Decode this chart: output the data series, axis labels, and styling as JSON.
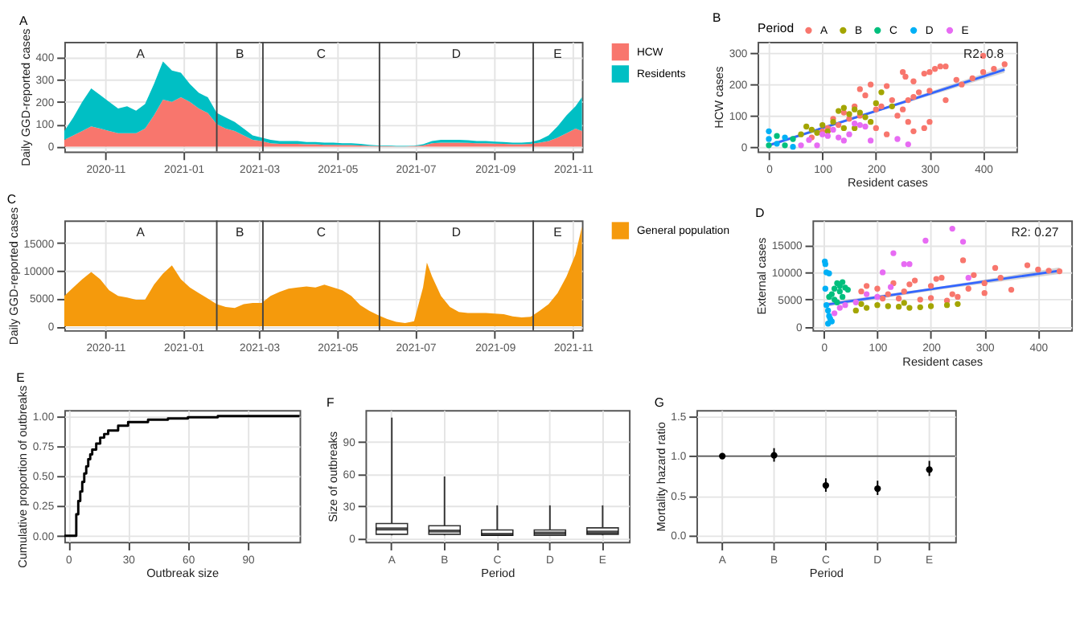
{
  "chart_data": [
    {
      "type": "area",
      "title": "A",
      "ylabel": "Daily GGD-reported cases",
      "stacked": true,
      "grid": true,
      "legend": "right",
      "x": [
        "2020-09-30",
        "2020-10-07",
        "2020-10-14",
        "2020-10-21",
        "2020-10-28",
        "2020-11-04",
        "2020-11-11",
        "2020-11-18",
        "2020-11-25",
        "2020-12-02",
        "2020-12-09",
        "2020-12-16",
        "2020-12-23",
        "2020-12-30",
        "2021-01-06",
        "2021-01-13",
        "2021-01-20",
        "2021-01-27",
        "2021-02-03",
        "2021-02-10",
        "2021-02-17",
        "2021-02-24",
        "2021-03-03",
        "2021-03-10",
        "2021-03-17",
        "2021-03-24",
        "2021-03-31",
        "2021-04-07",
        "2021-04-14",
        "2021-04-21",
        "2021-04-28",
        "2021-05-05",
        "2021-05-12",
        "2021-05-19",
        "2021-05-26",
        "2021-06-02",
        "2021-06-09",
        "2021-06-16",
        "2021-06-23",
        "2021-06-30",
        "2021-07-07",
        "2021-07-14",
        "2021-07-21",
        "2021-07-28",
        "2021-08-04",
        "2021-08-11",
        "2021-08-18",
        "2021-08-25",
        "2021-09-01",
        "2021-09-08",
        "2021-09-15",
        "2021-09-22",
        "2021-09-29",
        "2021-10-06",
        "2021-10-13",
        "2021-10-20",
        "2021-10-27",
        "2021-11-03",
        "2021-11-08"
      ],
      "series": [
        {
          "name": "HCW",
          "color": "#f8766d",
          "values": [
            30,
            50,
            70,
            90,
            80,
            70,
            60,
            60,
            60,
            80,
            140,
            210,
            200,
            220,
            200,
            170,
            150,
            100,
            80,
            70,
            50,
            30,
            25,
            15,
            12,
            12,
            12,
            10,
            10,
            8,
            8,
            7,
            7,
            5,
            3,
            2,
            2,
            1,
            1,
            2,
            5,
            15,
            18,
            18,
            18,
            17,
            15,
            15,
            13,
            12,
            10,
            10,
            12,
            18,
            25,
            40,
            60,
            80,
            70
          ]
        },
        {
          "name": "Residents",
          "color": "#00bfc4",
          "values": [
            40,
            80,
            130,
            170,
            150,
            130,
            110,
            120,
            100,
            110,
            140,
            170,
            140,
            110,
            80,
            70,
            70,
            50,
            50,
            40,
            30,
            20,
            15,
            15,
            13,
            13,
            13,
            10,
            10,
            10,
            10,
            8,
            8,
            7,
            5,
            3,
            3,
            2,
            2,
            2,
            5,
            10,
            12,
            12,
            12,
            11,
            10,
            10,
            9,
            8,
            8,
            8,
            8,
            12,
            25,
            50,
            80,
            100,
            150
          ]
        }
      ],
      "xlim": [
        "2020-09-30",
        "2021-11-08"
      ],
      "xticks": [
        "2020-11",
        "2021-01",
        "2021-03",
        "2021-05",
        "2021-07",
        "2021-09",
        "2021-11"
      ],
      "ylim": [
        -22,
        468
      ],
      "yticks": [
        0,
        100,
        200,
        300,
        400
      ],
      "ref_lines": [
        {
          "axis": "x",
          "value": "2021-01-27"
        },
        {
          "axis": "x",
          "value": "2021-03-04"
        },
        {
          "axis": "x",
          "value": "2021-06-03"
        },
        {
          "axis": "x",
          "value": "2021-10-01"
        }
      ],
      "annotations": [
        "A",
        "B",
        "C",
        "D",
        "E"
      ]
    },
    {
      "type": "scatter",
      "title": "B",
      "xlabel": "Resident cases",
      "ylabel": "HCW cases",
      "legend_title": "Period",
      "legend": "top",
      "grid": true,
      "xlim": [
        -21,
        462
      ],
      "xticks": [
        0,
        100,
        200,
        300,
        400
      ],
      "ylim": [
        -15,
        337
      ],
      "yticks": [
        0,
        100,
        200,
        300
      ],
      "annotations": [
        "R2: 0.8"
      ],
      "series": [
        {
          "name": "A",
          "color": "#f8766d",
          "marker": "circle",
          "x": [
            250,
            255,
            270,
            290,
            300,
            310,
            320,
            330,
            400,
            420,
            440,
            380,
            350,
            300,
            280,
            270,
            260,
            230,
            220,
            190,
            180,
            170,
            160,
            200,
            240,
            260,
            300,
            290,
            270,
            220,
            200,
            150,
            130,
            110,
            100,
            80,
            140,
            170,
            210,
            250,
            330,
            360,
            400,
            120
          ],
          "values": [
            240,
            225,
            210,
            235,
            240,
            250,
            258,
            258,
            292,
            250,
            265,
            220,
            215,
            180,
            175,
            160,
            150,
            150,
            195,
            200,
            165,
            185,
            130,
            120,
            100,
            80,
            80,
            60,
            50,
            40,
            60,
            90,
            70,
            60,
            50,
            30,
            110,
            100,
            130,
            120,
            150,
            200,
            240,
            90
          ]
        },
        {
          "name": "B",
          "color": "#a3a500",
          "marker": "circle",
          "x": [
            100,
            120,
            130,
            140,
            150,
            160,
            170,
            180,
            210,
            200,
            230,
            70,
            80,
            90,
            60,
            110,
            140,
            160,
            190
          ],
          "values": [
            70,
            80,
            115,
            125,
            105,
            120,
            110,
            95,
            175,
            140,
            130,
            65,
            55,
            45,
            40,
            50,
            60,
            60,
            80
          ]
        },
        {
          "name": "C",
          "color": "#00bf7d",
          "marker": "circle",
          "x": [
            0,
            15,
            30,
            45
          ],
          "values": [
            5,
            35,
            5,
            25
          ]
        },
        {
          "name": "D",
          "color": "#00b0f6",
          "marker": "circle",
          "x": [
            0,
            15,
            30,
            45,
            0
          ],
          "values": [
            25,
            10,
            30,
            0,
            50
          ]
        },
        {
          "name": "E",
          "color": "#e76bf3",
          "marker": "circle",
          "x": [
            60,
            75,
            90,
            100,
            120,
            130,
            150,
            170,
            180,
            190,
            160,
            140,
            240,
            260,
            110
          ],
          "values": [
            5,
            22,
            5,
            40,
            55,
            30,
            40,
            70,
            65,
            20,
            75,
            20,
            25,
            8,
            35
          ]
        },
        {
          "type": "line",
          "color": "#3366ff",
          "x": [
            0,
            220,
            440
          ],
          "values": [
            5,
            126,
            248
          ],
          "lower": [
            0,
            122,
            238
          ],
          "upper": [
            10,
            130,
            258
          ]
        }
      ]
    },
    {
      "type": "area",
      "title": "C",
      "ylabel": "Daily GGD-reported cases",
      "grid": true,
      "legend": "right",
      "x": [
        "2020-09-30",
        "2020-10-07",
        "2020-10-14",
        "2020-10-21",
        "2020-10-28",
        "2020-11-04",
        "2020-11-11",
        "2020-11-18",
        "2020-11-25",
        "2020-12-02",
        "2020-12-09",
        "2020-12-16",
        "2020-12-23",
        "2020-12-30",
        "2021-01-06",
        "2021-01-13",
        "2021-01-20",
        "2021-01-27",
        "2021-02-03",
        "2021-02-10",
        "2021-02-17",
        "2021-02-24",
        "2021-03-03",
        "2021-03-10",
        "2021-03-17",
        "2021-03-24",
        "2021-03-31",
        "2021-04-07",
        "2021-04-14",
        "2021-04-21",
        "2021-04-28",
        "2021-05-05",
        "2021-05-12",
        "2021-05-19",
        "2021-05-26",
        "2021-06-02",
        "2021-06-09",
        "2021-06-16",
        "2021-06-23",
        "2021-06-30",
        "2021-07-07",
        "2021-07-10",
        "2021-07-14",
        "2021-07-21",
        "2021-07-28",
        "2021-08-04",
        "2021-08-11",
        "2021-08-18",
        "2021-08-25",
        "2021-09-01",
        "2021-09-08",
        "2021-09-15",
        "2021-09-22",
        "2021-09-29",
        "2021-10-06",
        "2021-10-13",
        "2021-10-20",
        "2021-10-27",
        "2021-11-03",
        "2021-11-08"
      ],
      "series": [
        {
          "name": "General population",
          "color": "#f59a0c",
          "values": [
            5500,
            7000,
            8500,
            9800,
            8500,
            6500,
            5500,
            5200,
            4800,
            4800,
            7500,
            9500,
            11000,
            8500,
            7000,
            6000,
            5000,
            4000,
            3500,
            3300,
            4000,
            4200,
            4200,
            5500,
            6200,
            6800,
            7000,
            7200,
            7000,
            7500,
            7000,
            6500,
            5500,
            3800,
            2800,
            2000,
            1300,
            800,
            600,
            900,
            7000,
            11500,
            9000,
            5500,
            3500,
            2600,
            2400,
            2400,
            2400,
            2300,
            2200,
            1800,
            1600,
            1700,
            2800,
            4000,
            6000,
            9000,
            13000,
            18000
          ]
        }
      ],
      "xlim": [
        "2020-09-30",
        "2021-11-08"
      ],
      "xticks": [
        "2020-11",
        "2021-01",
        "2021-03",
        "2021-05",
        "2021-07",
        "2021-09",
        "2021-11"
      ],
      "ylim": [
        -700,
        19100
      ],
      "yticks": [
        0,
        5000,
        10000,
        15000
      ],
      "ref_lines": [
        {
          "axis": "x",
          "value": "2021-01-27"
        },
        {
          "axis": "x",
          "value": "2021-03-04"
        },
        {
          "axis": "x",
          "value": "2021-06-03"
        },
        {
          "axis": "x",
          "value": "2021-10-01"
        }
      ],
      "annotations": [
        "A",
        "B",
        "C",
        "D",
        "E"
      ]
    },
    {
      "type": "scatter",
      "title": "D",
      "xlabel": "Resident cases",
      "ylabel": "External cases",
      "grid": true,
      "xlim": [
        -21,
        462
      ],
      "xticks": [
        0,
        100,
        200,
        300,
        400
      ],
      "ylim": [
        -600,
        19500
      ],
      "yticks": [
        0,
        5000,
        10000,
        15000
      ],
      "annotations": [
        "R2: 0.27"
      ],
      "series": [
        {
          "color": "#f8766d",
          "marker": "circle",
          "x": [
            70,
            80,
            100,
            120,
            130,
            150,
            160,
            170,
            200,
            210,
            220,
            240,
            250,
            260,
            280,
            300,
            320,
            330,
            350,
            380,
            400,
            420,
            440,
            300,
            180,
            140,
            110,
            200,
            230,
            270
          ],
          "values": [
            6500,
            7500,
            7000,
            6000,
            8000,
            6500,
            7800,
            8500,
            7500,
            8800,
            9000,
            6000,
            5500,
            12200,
            9500,
            8000,
            10800,
            9000,
            6800,
            11300,
            10500,
            10300,
            10200,
            6200,
            5000,
            5200,
            5200,
            5300,
            4800,
            7000
          ]
        },
        {
          "color": "#a3a500",
          "marker": "circle",
          "x": [
            60,
            80,
            100,
            120,
            140,
            160,
            180,
            200,
            230,
            250,
            150,
            70
          ],
          "values": [
            3000,
            3500,
            4000,
            3800,
            3700,
            3500,
            3600,
            3800,
            4000,
            4200,
            4400,
            4200
          ]
        },
        {
          "color": "#00bf7d",
          "marker": "circle",
          "x": [
            15,
            20,
            25,
            30,
            35,
            40,
            20,
            25,
            30,
            45,
            10,
            35
          ],
          "values": [
            6000,
            7000,
            8000,
            6500,
            5500,
            7200,
            5000,
            4500,
            7500,
            6800,
            5500,
            8200
          ]
        },
        {
          "color": "#00b0f6",
          "marker": "circle",
          "x": [
            2,
            5,
            3,
            5,
            8,
            10,
            12,
            15,
            8,
            3,
            10
          ],
          "values": [
            12000,
            10000,
            7000,
            4000,
            3000,
            2000,
            1500,
            1000,
            600,
            11500,
            9800
          ]
        },
        {
          "color": "#e76bf3",
          "marker": "circle",
          "x": [
            20,
            30,
            40,
            60,
            80,
            100,
            110,
            130,
            150,
            160,
            190,
            240,
            260,
            270,
            125
          ],
          "values": [
            2500,
            3500,
            4000,
            4500,
            6000,
            5500,
            10000,
            13500,
            11500,
            11500,
            15800,
            18000,
            15600,
            9000,
            7300
          ]
        },
        {
          "type": "line",
          "color": "#3366ff",
          "x": [
            0,
            220,
            440
          ],
          "values": [
            4000,
            7200,
            10300
          ],
          "lower": [
            3600,
            6900,
            9700
          ],
          "upper": [
            4400,
            7400,
            10900
          ]
        }
      ]
    },
    {
      "type": "step",
      "title": "E",
      "xlabel": "Outbreak size",
      "ylabel": "Cumulative proportion of outbreaks",
      "grid": true,
      "color": "#000000",
      "x": [
        -2,
        3,
        4,
        5,
        6,
        7,
        8,
        9,
        10,
        11,
        12,
        14,
        16,
        18,
        20,
        25,
        30,
        40,
        50,
        60,
        75,
        116
      ],
      "values": [
        0,
        0,
        0.18,
        0.29,
        0.37,
        0.45,
        0.52,
        0.58,
        0.64,
        0.68,
        0.72,
        0.77,
        0.82,
        0.85,
        0.88,
        0.92,
        0.95,
        0.97,
        0.98,
        0.99,
        1,
        1
      ],
      "xlim": [
        -2,
        116
      ],
      "xticks": [
        0,
        30,
        60,
        90
      ],
      "ylim": [
        -0.05,
        1.05
      ],
      "yticks": [
        {
          "value": 0,
          "label": "0.00"
        },
        {
          "value": 0.25,
          "label": "0.25"
        },
        {
          "value": 0.5,
          "label": "0.50"
        },
        {
          "value": 0.75,
          "label": "0.75"
        },
        {
          "value": 1,
          "label": "1.00"
        }
      ]
    },
    {
      "type": "box",
      "title": "F",
      "xlabel": "Period",
      "ylabel": "Size of outbreaks",
      "grid": true,
      "categories": [
        "A",
        "B",
        "C",
        "D",
        "E"
      ],
      "boxes": [
        {
          "low": 3,
          "q1": 4,
          "median": 9,
          "q3": 14,
          "high": 113
        },
        {
          "low": 3,
          "q1": 4,
          "median": 7,
          "q3": 12,
          "high": 58
        },
        {
          "low": 3,
          "q1": 3,
          "median": 4,
          "q3": 8,
          "high": 31
        },
        {
          "low": 3,
          "q1": 3,
          "median": 5,
          "q3": 8,
          "high": 31
        },
        {
          "low": 3,
          "q1": 4,
          "median": 6,
          "q3": 10,
          "high": 31
        }
      ],
      "ylim": [
        -3,
        120
      ],
      "yticks": [
        0,
        30,
        60,
        90
      ]
    },
    {
      "type": "scatter",
      "title": "G",
      "xlabel": "Period",
      "ylabel": "Mortality hazard ratio",
      "grid": true,
      "marker": "circle",
      "color": "#000000",
      "categories": [
        "A",
        "B",
        "C",
        "D",
        "E"
      ],
      "values": [
        1.0,
        1.01,
        0.63,
        0.59,
        0.83
      ],
      "errors": [
        null,
        [
          0.93,
          1.1
        ],
        [
          0.55,
          0.72
        ],
        [
          0.51,
          0.69
        ],
        [
          0.75,
          0.94
        ]
      ],
      "ref_lines": [
        {
          "axis": "y",
          "value": 1
        }
      ],
      "ylim": [
        -0.08,
        1.58
      ],
      "yticks": [
        {
          "value": 0,
          "label": "0.0"
        },
        {
          "value": 0.5,
          "label": "0.5"
        },
        {
          "value": 1,
          "label": "1.0"
        },
        {
          "value": 1.5,
          "label": "1.5"
        }
      ]
    }
  ]
}
